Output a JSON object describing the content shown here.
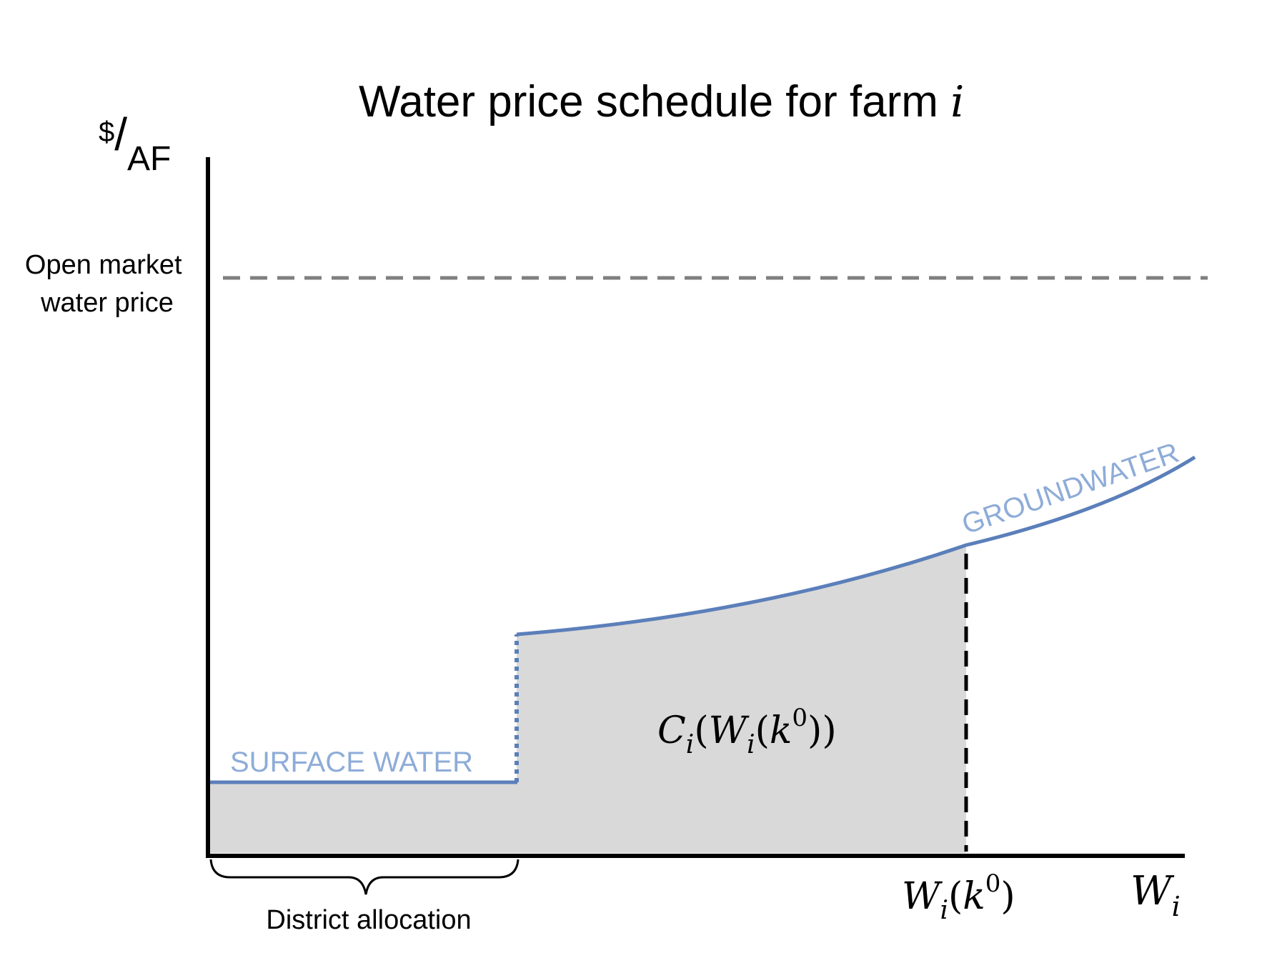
{
  "title": {
    "text": "Water price schedule for farm ",
    "var": "i"
  },
  "y_axis": {
    "unit_num": "$",
    "unit_slash": "/",
    "unit_den": "AF"
  },
  "x_axis": {
    "var_main": "W",
    "var_sub": "i"
  },
  "open_market": {
    "line1": "Open market",
    "line2": "water price"
  },
  "labels": {
    "surface_water": "SURFACE WATER",
    "groundwater": "GROUNDWATER",
    "district_allocation": "District allocation"
  },
  "area_label": {
    "c": "C",
    "sub1": "i",
    "open1": "(",
    "w": "W",
    "sub2": "i",
    "open2": "(",
    "k": "k",
    "sup": "0",
    "close": "))"
  },
  "tick_label": {
    "w": "W",
    "sub": "i",
    "open": "(",
    "k": "k",
    "sup": "0",
    "close": ")"
  },
  "colors": {
    "curve": "#5b7fba",
    "label_blue": "#8eacd8",
    "shade": "#d9d9d9",
    "dash_gray": "#7f7f7f",
    "axis": "#000000"
  }
}
